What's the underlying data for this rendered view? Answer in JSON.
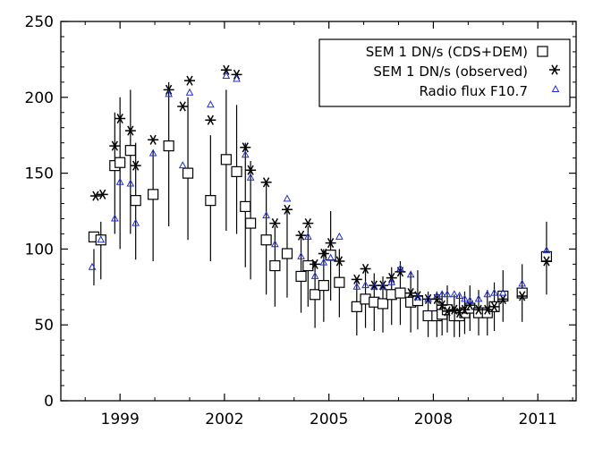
{
  "chart_data": {
    "type": "scatter",
    "title": "",
    "xlabel": "",
    "ylabel": "",
    "xlim": [
      1997.3,
      2012.1
    ],
    "ylim": [
      0,
      250
    ],
    "x_ticks": [
      1999,
      2002,
      2005,
      2008,
      2011
    ],
    "y_ticks": [
      0,
      50,
      100,
      150,
      200,
      250
    ],
    "grid": false,
    "legend_position": "top-right",
    "colors": {
      "cds_dem": "#000000",
      "observed": "#000000",
      "radio": "#1f2fd0"
    },
    "series": [
      {
        "name": "SEM 1 DN/s (CDS+DEM)",
        "marker": "square",
        "points": [
          [
            1998.25,
            108,
            76,
            100
          ],
          [
            1998.45,
            106,
            80,
            118
          ],
          [
            1998.85,
            155,
            110,
            190
          ],
          [
            1999.0,
            157,
            100,
            200
          ],
          [
            1999.3,
            165,
            110,
            205
          ],
          [
            1999.45,
            132,
            93,
            170
          ],
          [
            1999.95,
            136,
            92,
            165
          ],
          [
            2000.4,
            168,
            115,
            210
          ],
          [
            2000.95,
            150,
            106,
            200
          ],
          [
            2001.6,
            132,
            92,
            175
          ],
          [
            2002.05,
            159,
            112,
            205
          ],
          [
            2002.35,
            151,
            110,
            195
          ],
          [
            2002.6,
            128,
            88,
            170
          ],
          [
            2002.75,
            117,
            80,
            158
          ],
          [
            2003.2,
            106,
            70,
            145
          ],
          [
            2003.45,
            89,
            62,
            115
          ],
          [
            2003.8,
            97,
            68,
            125
          ],
          [
            2004.2,
            82,
            58,
            108
          ],
          [
            2004.4,
            89,
            62,
            115
          ],
          [
            2004.6,
            70,
            48,
            92
          ],
          [
            2004.85,
            76,
            52,
            100
          ],
          [
            2005.05,
            96,
            66,
            125
          ],
          [
            2005.3,
            78,
            55,
            100
          ],
          [
            2005.8,
            62,
            43,
            80
          ],
          [
            2006.05,
            67,
            48,
            86
          ],
          [
            2006.3,
            65,
            46,
            84
          ],
          [
            2006.55,
            64,
            45,
            82
          ],
          [
            2006.8,
            70,
            50,
            88
          ],
          [
            2007.05,
            71,
            50,
            92
          ],
          [
            2007.35,
            65,
            45,
            85
          ],
          [
            2007.55,
            66,
            47,
            86
          ],
          [
            2007.85,
            56,
            42,
            72
          ],
          [
            2008.1,
            56,
            42,
            72
          ],
          [
            2008.25,
            57,
            43,
            72
          ],
          [
            2008.4,
            60,
            45,
            76
          ],
          [
            2008.6,
            56,
            42,
            70
          ],
          [
            2008.75,
            56,
            42,
            70
          ],
          [
            2008.9,
            58,
            44,
            72
          ],
          [
            2009.05,
            61,
            46,
            76
          ],
          [
            2009.3,
            58,
            43,
            73
          ],
          [
            2009.55,
            58,
            43,
            73
          ],
          [
            2009.75,
            62,
            46,
            78
          ],
          [
            2010.0,
            69,
            52,
            86
          ],
          [
            2010.55,
            71,
            52,
            90
          ],
          [
            2011.25,
            95,
            70,
            118
          ]
        ]
      },
      {
        "name": "SEM 1 DN/s (observed)",
        "marker": "asterisk",
        "points": [
          [
            1998.3,
            135
          ],
          [
            1998.5,
            136
          ],
          [
            1998.85,
            168
          ],
          [
            1999.0,
            186
          ],
          [
            1999.3,
            178
          ],
          [
            1999.45,
            155
          ],
          [
            1999.95,
            172
          ],
          [
            2000.4,
            205
          ],
          [
            2000.8,
            194
          ],
          [
            2001.0,
            211
          ],
          [
            2001.6,
            185
          ],
          [
            2002.05,
            218
          ],
          [
            2002.35,
            215
          ],
          [
            2002.6,
            167
          ],
          [
            2002.75,
            152
          ],
          [
            2003.2,
            144
          ],
          [
            2003.45,
            117
          ],
          [
            2003.8,
            126
          ],
          [
            2004.2,
            109
          ],
          [
            2004.4,
            117
          ],
          [
            2004.6,
            90
          ],
          [
            2004.85,
            97
          ],
          [
            2005.05,
            104
          ],
          [
            2005.3,
            92
          ],
          [
            2005.8,
            80
          ],
          [
            2006.05,
            87
          ],
          [
            2006.3,
            76
          ],
          [
            2006.55,
            76
          ],
          [
            2006.8,
            81
          ],
          [
            2007.05,
            85
          ],
          [
            2007.35,
            71
          ],
          [
            2007.55,
            69
          ],
          [
            2007.85,
            67
          ],
          [
            2008.1,
            67
          ],
          [
            2008.25,
            63
          ],
          [
            2008.4,
            59
          ],
          [
            2008.6,
            60
          ],
          [
            2008.75,
            58
          ],
          [
            2008.9,
            60
          ],
          [
            2009.05,
            63
          ],
          [
            2009.3,
            60
          ],
          [
            2009.55,
            60
          ],
          [
            2009.75,
            62
          ],
          [
            2010.0,
            67
          ],
          [
            2010.55,
            69
          ],
          [
            2011.25,
            92
          ]
        ]
      },
      {
        "name": "Radio flux F10.7",
        "marker": "triangle",
        "points": [
          [
            1998.2,
            88
          ],
          [
            1998.45,
            106
          ],
          [
            1998.85,
            120
          ],
          [
            1999.0,
            144
          ],
          [
            1999.3,
            143
          ],
          [
            1999.45,
            117
          ],
          [
            1999.95,
            163
          ],
          [
            2000.4,
            202
          ],
          [
            2000.8,
            155
          ],
          [
            2001.0,
            203
          ],
          [
            2001.6,
            195
          ],
          [
            2002.05,
            214
          ],
          [
            2002.35,
            212
          ],
          [
            2002.6,
            162
          ],
          [
            2002.75,
            147
          ],
          [
            2003.2,
            122
          ],
          [
            2003.45,
            103
          ],
          [
            2003.8,
            133
          ],
          [
            2004.2,
            95
          ],
          [
            2004.4,
            108
          ],
          [
            2004.6,
            82
          ],
          [
            2004.85,
            91
          ],
          [
            2005.05,
            94
          ],
          [
            2005.3,
            108
          ],
          [
            2005.8,
            75
          ],
          [
            2006.05,
            76
          ],
          [
            2006.3,
            75
          ],
          [
            2006.55,
            75
          ],
          [
            2006.8,
            78
          ],
          [
            2007.05,
            87
          ],
          [
            2007.35,
            83
          ],
          [
            2007.55,
            68
          ],
          [
            2007.85,
            67
          ],
          [
            2008.1,
            69
          ],
          [
            2008.25,
            70
          ],
          [
            2008.4,
            70
          ],
          [
            2008.6,
            70
          ],
          [
            2008.75,
            69
          ],
          [
            2008.9,
            67
          ],
          [
            2009.05,
            66
          ],
          [
            2009.3,
            67
          ],
          [
            2009.55,
            70
          ],
          [
            2009.75,
            71
          ],
          [
            2010.0,
            71
          ],
          [
            2010.55,
            77
          ],
          [
            2011.25,
            99
          ]
        ]
      }
    ]
  }
}
